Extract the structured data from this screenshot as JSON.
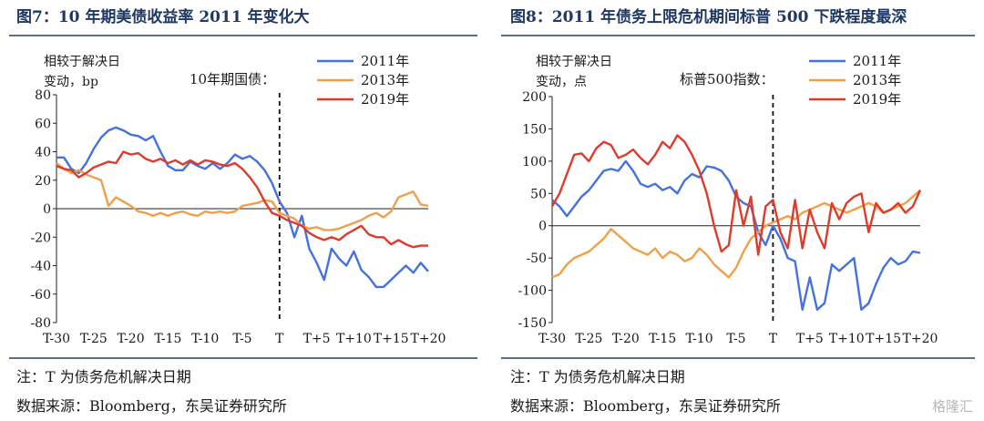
{
  "figures": [
    {
      "title": "图7：10 年期美债收益率 2011 年变化大",
      "note": "注：T 为债务危机解决日期",
      "source": "数据来源：Bloomberg，东吴证券研究所"
    },
    {
      "title": "图8：2011 年债务上限危机期间标普 500 下跌程度最深",
      "note": "注：T 为债务危机解决日期",
      "source": "数据来源：Bloomberg，东吴证券研究所"
    }
  ],
  "watermark": "格隆汇",
  "chart_data": [
    {
      "type": "line",
      "ylabel_line1": "相较于解决日",
      "ylabel_line2": "变动，bp",
      "annotation": "10年期国债：",
      "ylim": [
        -80,
        80
      ],
      "yticks": [
        -80,
        -60,
        -40,
        -20,
        0,
        20,
        40,
        60,
        80
      ],
      "xlim": [
        -30,
        20
      ],
      "x_ticks": [
        -30,
        -25,
        -20,
        -15,
        -10,
        -5,
        0,
        5,
        10,
        15,
        20
      ],
      "x_tick_labels": [
        "T-30",
        "T-25",
        "T-20",
        "T-15",
        "T-10",
        "T-5",
        "T",
        "T+5",
        "T+10",
        "T+15",
        "T+20"
      ],
      "marker_line_x": 0,
      "legend_position": "top-right",
      "series": [
        {
          "name": "2011年",
          "color": "#4472e0",
          "x": [
            -30,
            -29,
            -28,
            -27,
            -26,
            -25,
            -24,
            -23,
            -22,
            -21,
            -20,
            -19,
            -18,
            -17,
            -16,
            -15,
            -14,
            -13,
            -12,
            -11,
            -10,
            -9,
            -8,
            -7,
            -6,
            -5,
            -4,
            -3,
            -2,
            -1,
            0,
            1,
            2,
            3,
            4,
            5,
            6,
            7,
            8,
            9,
            10,
            11,
            12,
            13,
            14,
            15,
            16,
            17,
            18,
            19,
            20
          ],
          "values": [
            36,
            36,
            28,
            25,
            32,
            42,
            50,
            55,
            57,
            55,
            52,
            51,
            48,
            51,
            40,
            30,
            27,
            27,
            33,
            30,
            28,
            32,
            28,
            32,
            38,
            35,
            37,
            33,
            27,
            18,
            5,
            -3,
            -20,
            -5,
            -28,
            -38,
            -50,
            -28,
            -35,
            -40,
            -30,
            -43,
            -48,
            -55,
            -55,
            -50,
            -45,
            -40,
            -45,
            -38,
            -44
          ]
        },
        {
          "name": "2013年",
          "color": "#f0a04b",
          "x": [
            -30,
            -29,
            -28,
            -27,
            -26,
            -25,
            -24,
            -23,
            -22,
            -21,
            -20,
            -19,
            -18,
            -17,
            -16,
            -15,
            -14,
            -13,
            -12,
            -11,
            -10,
            -9,
            -8,
            -7,
            -6,
            -5,
            -4,
            -3,
            -2,
            -1,
            0,
            1,
            2,
            3,
            4,
            5,
            6,
            7,
            8,
            9,
            10,
            11,
            12,
            13,
            14,
            15,
            16,
            17,
            18,
            19,
            20
          ],
          "values": [
            32,
            28,
            25,
            27,
            24,
            22,
            20,
            2,
            8,
            5,
            2,
            -2,
            -3,
            -5,
            -3,
            -5,
            -3,
            -2,
            -4,
            -5,
            -2,
            -3,
            -2,
            -3,
            -2,
            2,
            3,
            4,
            6,
            5,
            -3,
            -5,
            -7,
            -12,
            -14,
            -13,
            -15,
            -15,
            -14,
            -12,
            -10,
            -8,
            -5,
            -3,
            -6,
            -2,
            8,
            10,
            12,
            3,
            2
          ]
        },
        {
          "name": "2019年",
          "color": "#e03b2a",
          "x": [
            -30,
            -29,
            -28,
            -27,
            -26,
            -25,
            -24,
            -23,
            -22,
            -21,
            -20,
            -19,
            -18,
            -17,
            -16,
            -15,
            -14,
            -13,
            -12,
            -11,
            -10,
            -9,
            -8,
            -7,
            -6,
            -5,
            -4,
            -3,
            -2,
            -1,
            0,
            1,
            2,
            3,
            4,
            5,
            6,
            7,
            8,
            9,
            10,
            11,
            12,
            13,
            14,
            15,
            16,
            17,
            18,
            19,
            20
          ],
          "values": [
            30,
            28,
            27,
            22,
            25,
            29,
            31,
            33,
            32,
            40,
            38,
            39,
            35,
            33,
            35,
            32,
            34,
            31,
            34,
            31,
            34,
            33,
            31,
            30,
            32,
            28,
            22,
            15,
            5,
            -3,
            -5,
            -8,
            -10,
            -12,
            -17,
            -20,
            -22,
            -20,
            -22,
            -18,
            -15,
            -12,
            -18,
            -20,
            -20,
            -25,
            -22,
            -25,
            -27,
            -26,
            -26
          ]
        }
      ]
    },
    {
      "type": "line",
      "ylabel_line1": "相较于解决日",
      "ylabel_line2": "变动，点",
      "annotation": "标普500指数：",
      "ylim": [
        -150,
        200
      ],
      "yticks": [
        -150,
        -100,
        -50,
        0,
        50,
        100,
        150,
        200
      ],
      "xlim": [
        -30,
        20
      ],
      "x_ticks": [
        -30,
        -25,
        -20,
        -15,
        -10,
        -5,
        0,
        5,
        10,
        15,
        20
      ],
      "x_tick_labels": [
        "T-30",
        "T-25",
        "T-20",
        "T-15",
        "T-10",
        "T-5",
        "T",
        "T+5",
        "T+10",
        "T+15",
        "T+20"
      ],
      "marker_line_x": 0,
      "legend_position": "top-right",
      "series": [
        {
          "name": "2011年",
          "color": "#4472e0",
          "x": [
            -30,
            -29,
            -28,
            -27,
            -26,
            -25,
            -24,
            -23,
            -22,
            -21,
            -20,
            -19,
            -18,
            -17,
            -16,
            -15,
            -14,
            -13,
            -12,
            -11,
            -10,
            -9,
            -8,
            -7,
            -6,
            -5,
            -4,
            -3,
            -2,
            -1,
            0,
            1,
            2,
            3,
            4,
            5,
            6,
            7,
            8,
            9,
            10,
            11,
            12,
            13,
            14,
            15,
            16,
            17,
            18,
            19,
            20
          ],
          "values": [
            40,
            30,
            15,
            30,
            45,
            55,
            70,
            85,
            88,
            85,
            100,
            85,
            65,
            60,
            65,
            55,
            60,
            50,
            70,
            80,
            75,
            92,
            90,
            85,
            70,
            45,
            35,
            30,
            -10,
            -30,
            0,
            -20,
            -50,
            -55,
            -130,
            -80,
            -130,
            -120,
            -60,
            -70,
            -60,
            -50,
            -130,
            -120,
            -90,
            -65,
            -50,
            -60,
            -55,
            -40,
            -42
          ]
        },
        {
          "name": "2013年",
          "color": "#f0a04b",
          "x": [
            -30,
            -29,
            -28,
            -27,
            -26,
            -25,
            -24,
            -23,
            -22,
            -21,
            -20,
            -19,
            -18,
            -17,
            -16,
            -15,
            -14,
            -13,
            -12,
            -11,
            -10,
            -9,
            -8,
            -7,
            -6,
            -5,
            -4,
            -3,
            -2,
            -1,
            0,
            1,
            2,
            3,
            4,
            5,
            6,
            7,
            8,
            9,
            10,
            11,
            12,
            13,
            14,
            15,
            16,
            17,
            18,
            19,
            20
          ],
          "values": [
            -80,
            -75,
            -60,
            -50,
            -45,
            -40,
            -30,
            -20,
            -5,
            -15,
            -25,
            -35,
            -40,
            -45,
            -35,
            -50,
            -40,
            -45,
            -55,
            -50,
            -35,
            -45,
            -60,
            -70,
            -80,
            -65,
            -40,
            -20,
            -10,
            0,
            5,
            10,
            15,
            10,
            20,
            25,
            30,
            35,
            30,
            25,
            20,
            25,
            30,
            35,
            30,
            20,
            25,
            30,
            35,
            45,
            55
          ]
        },
        {
          "name": "2019年",
          "color": "#e03b2a",
          "x": [
            -30,
            -29,
            -28,
            -27,
            -26,
            -25,
            -24,
            -23,
            -22,
            -21,
            -20,
            -19,
            -18,
            -17,
            -16,
            -15,
            -14,
            -13,
            -12,
            -11,
            -10,
            -9,
            -8,
            -7,
            -6,
            -5,
            -4,
            -3,
            -2,
            -1,
            0,
            1,
            2,
            3,
            4,
            5,
            6,
            7,
            8,
            9,
            10,
            11,
            12,
            13,
            14,
            15,
            16,
            17,
            18,
            19,
            20
          ],
          "values": [
            30,
            50,
            80,
            110,
            112,
            100,
            120,
            130,
            125,
            105,
            110,
            118,
            105,
            95,
            110,
            130,
            120,
            140,
            130,
            110,
            85,
            50,
            0,
            -40,
            -30,
            55,
            0,
            45,
            -45,
            30,
            40,
            -10,
            -35,
            40,
            -35,
            25,
            -10,
            -35,
            35,
            10,
            35,
            45,
            50,
            -10,
            35,
            20,
            25,
            35,
            20,
            30,
            55
          ]
        }
      ]
    }
  ]
}
